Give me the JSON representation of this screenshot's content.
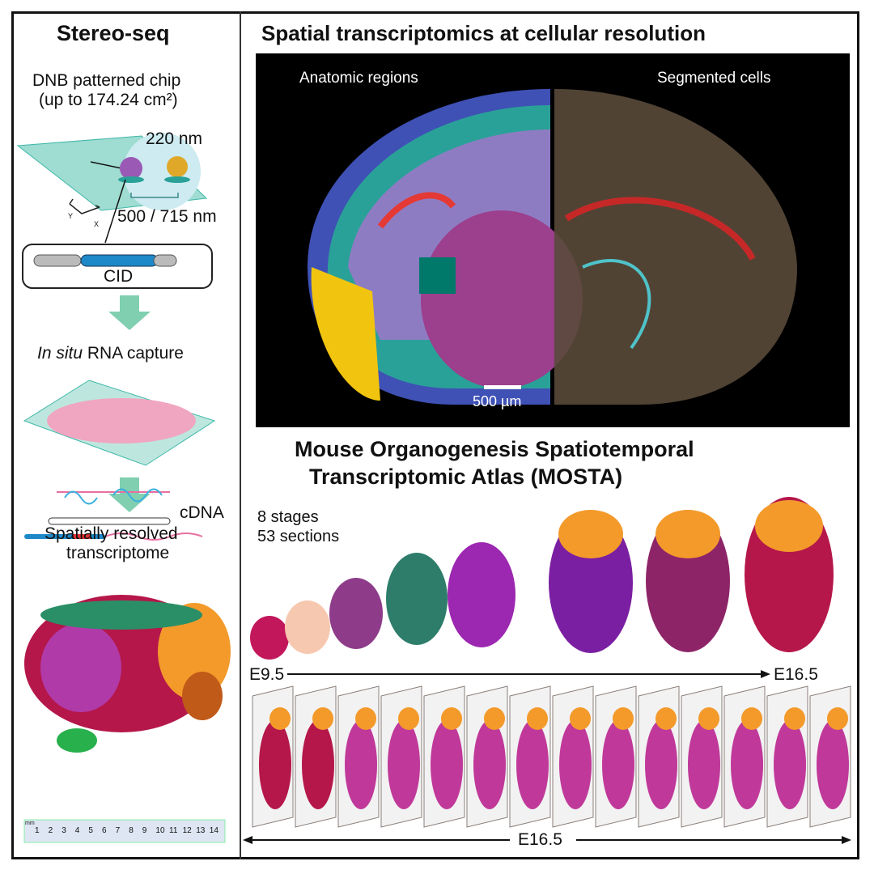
{
  "left_panel": {
    "title": "Stereo-seq",
    "chip_label": "DNB patterned chip",
    "chip_area": "(up to 174.24 cm²)",
    "dnb_size": "220 nm",
    "pitch": "500 / 715 nm",
    "axis_x": "X",
    "axis_y": "Y",
    "cid_label": "CID",
    "capture_italic": "In situ",
    "capture_rest": " RNA capture",
    "cdna_label": "cDNA",
    "result_line1": "Spatially resolved",
    "result_line2": "transcriptome",
    "ruler_unit": "mm",
    "ruler_ticks": [
      "1",
      "2",
      "3",
      "4",
      "5",
      "6",
      "7",
      "8",
      "9",
      "10",
      "11",
      "12",
      "13",
      "14"
    ]
  },
  "brain_panel": {
    "title": "Spatial transcriptomics at cellular resolution",
    "left_label": "Anatomic regions",
    "right_label": "Segmented cells",
    "scale_bar": "500 µm"
  },
  "mosta_panel": {
    "title_line1": "Mouse Organogenesis Spatiotemporal",
    "title_line2": "Transcriptomic Atlas (MOSTA)",
    "stages": "8 stages",
    "sections": "53 sections",
    "timeline_start": "E9.5",
    "timeline_end": "E16.5",
    "sections_stage": "E16.5"
  },
  "colors": {
    "arrow": "#7fcfb0",
    "chip": "#3fb8a8",
    "border": "#111111",
    "brain_bg": "#000000"
  }
}
